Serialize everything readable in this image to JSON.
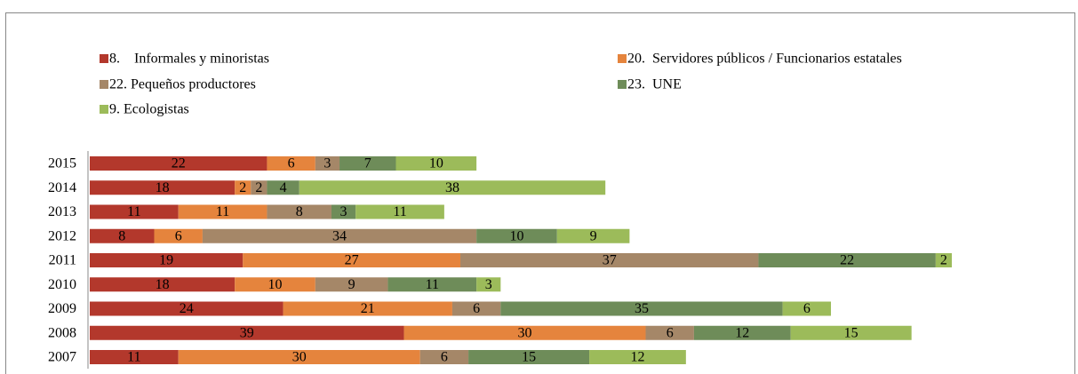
{
  "chart_data": {
    "type": "stacked_barh",
    "categories": [
      "2015",
      "2014",
      "2013",
      "2012",
      "2011",
      "2010",
      "2009",
      "2008",
      "2007"
    ],
    "series": [
      {
        "name": "8.    Informales y minoristas",
        "color": "#b3382c",
        "values": [
          22,
          18,
          11,
          8,
          19,
          18,
          24,
          39,
          11
        ]
      },
      {
        "name": "20.  Servidores públicos / Funcionarios estatales",
        "color": "#e5843d",
        "values": [
          6,
          2,
          11,
          6,
          27,
          10,
          21,
          30,
          30
        ]
      },
      {
        "name": "22. Pequeños productores",
        "color": "#a58768",
        "values": [
          3,
          2,
          8,
          34,
          37,
          9,
          6,
          6,
          6
        ]
      },
      {
        "name": "23.  UNE",
        "color": "#6e8c59",
        "values": [
          7,
          4,
          3,
          10,
          22,
          11,
          35,
          12,
          15
        ]
      },
      {
        "name": "9. Ecologistas",
        "color": "#9cbb5a",
        "values": [
          10,
          38,
          11,
          9,
          2,
          3,
          6,
          15,
          12
        ]
      }
    ]
  }
}
